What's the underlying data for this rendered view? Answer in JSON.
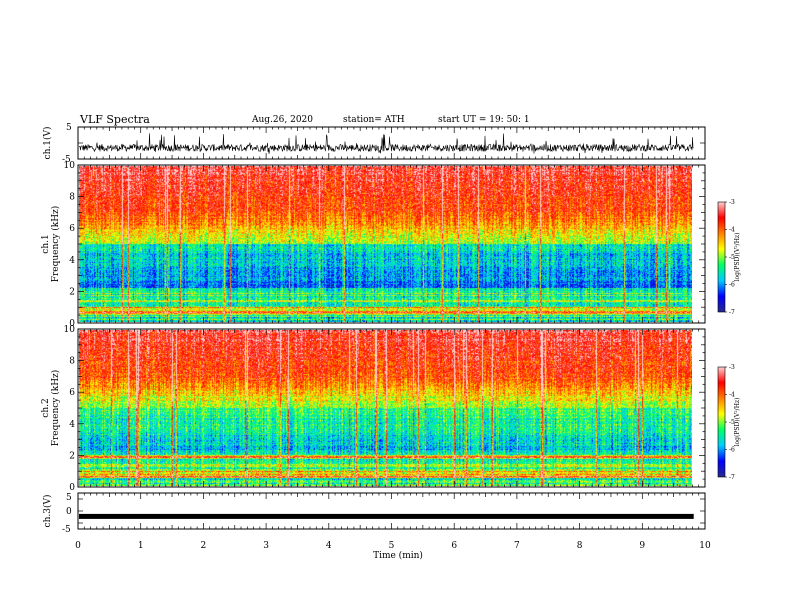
{
  "header": {
    "title": "VLF Spectra",
    "date": "Aug.26, 2020",
    "station": "station= ATH",
    "start": "start  UT =    19: 50: 1"
  },
  "chart_data": [
    {
      "type": "line",
      "ylabel": "ch.1(V)",
      "ylim": [
        -5,
        5
      ],
      "yticks": [
        "5",
        "-5"
      ],
      "xlim": [
        0,
        10
      ],
      "description_values": {
        "baseline_V": -1.5,
        "amplitude_V": 2.5
      }
    },
    {
      "type": "heatmap",
      "ylabel": "ch.1\nFrequency (kHz)",
      "ylabel_lines": [
        "ch.1",
        "Frequency (kHz)"
      ],
      "ylim": [
        0,
        10
      ],
      "yticks": [
        "0",
        "2",
        "4",
        "6",
        "8",
        "10"
      ],
      "xlim": [
        0,
        10
      ],
      "colorbar": {
        "label": "log(PSD)(V²/Hz)",
        "range": [
          -7,
          -3
        ],
        "ticks": [
          "-3",
          "-4",
          "-5",
          "-6",
          "-7"
        ]
      }
    },
    {
      "type": "heatmap",
      "ylabel": "ch.2\nFrequency (kHz)",
      "ylabel_lines": [
        "ch.2",
        "Frequency (kHz)"
      ],
      "ylim": [
        0,
        10
      ],
      "yticks": [
        "0",
        "2",
        "4",
        "6",
        "8",
        "10"
      ],
      "xlim": [
        0,
        10
      ],
      "colorbar": {
        "label": "log(PSD)(V²/Hz)",
        "range": [
          -7,
          -3
        ],
        "ticks": [
          "-3",
          "-4",
          "-5",
          "-6",
          "-7"
        ]
      }
    },
    {
      "type": "line",
      "ylabel": "ch.3(V)",
      "ylim": [
        -5,
        5
      ],
      "yticks": [
        "5",
        "0",
        "-5"
      ],
      "xlim": [
        0,
        10
      ],
      "description_values": {
        "level_V": -1.5
      }
    }
  ],
  "xaxis": {
    "label": "Time  (min)",
    "ticks": [
      "0",
      "1",
      "2",
      "3",
      "4",
      "5",
      "6",
      "7",
      "8",
      "9",
      "10"
    ],
    "range": [
      0,
      10
    ],
    "data_end_min": 9.82
  },
  "colors": {
    "ink": "#000000",
    "colormap": [
      "#2a2a8c",
      "#0000ff",
      "#00ccff",
      "#00ff66",
      "#ffff00",
      "#ff8000",
      "#ff0000",
      "#ffd0d0"
    ]
  }
}
